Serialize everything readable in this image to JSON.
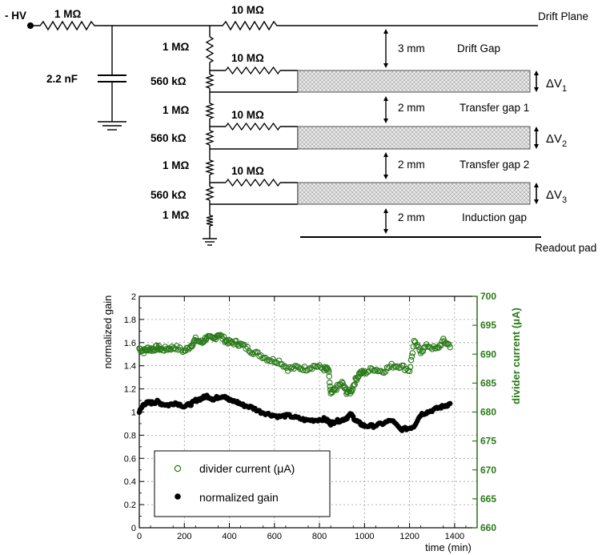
{
  "circuit": {
    "hv": "- HV",
    "r_input": "1 MΩ",
    "cap": "2.2 nF",
    "r_drift": "10 MΩ",
    "drift_plane": "Drift Plane",
    "readout_pad": "Readout pad",
    "chain": [
      "1 MΩ",
      "560 kΩ",
      "1 MΩ",
      "560 kΩ",
      "1 MΩ",
      "560 kΩ",
      "1 MΩ"
    ],
    "gem_resistors": [
      "10 MΩ",
      "10 MΩ",
      "10 MΩ"
    ],
    "dv_main": "ΔV",
    "dv_subs": [
      "1",
      "2",
      "3"
    ],
    "gaps": [
      {
        "distance": "3 mm",
        "name": "Drift Gap"
      },
      {
        "distance": "2 mm",
        "name": "Transfer gap 1"
      },
      {
        "distance": "2 mm",
        "name": "Transfer gap 2"
      },
      {
        "distance": "2 mm",
        "name": "Induction gap"
      }
    ]
  },
  "chart_data": {
    "type": "scatter",
    "title": "",
    "xlabel": "time (min)",
    "ylabel_left": "normalized gain",
    "ylabel_right": "divider current (μA)",
    "xlim": [
      0,
      1500
    ],
    "ylim_left": [
      0,
      2
    ],
    "ylim_right": [
      660,
      700
    ],
    "x_ticks": [
      "0",
      "200",
      "400",
      "600",
      "800",
      "1000",
      "1200",
      "1400"
    ],
    "y_ticks_left": [
      "0",
      "0.2",
      "0.4",
      "0.6",
      "0.8",
      "1",
      "1.2",
      "1.4",
      "1.6",
      "1.8",
      "2"
    ],
    "y_ticks_right": [
      "660",
      "665",
      "670",
      "675",
      "680",
      "685",
      "690",
      "695",
      "700"
    ],
    "grid": true,
    "legend_position": "bottom-left",
    "colors": {
      "current": "#2a7a1a",
      "gain": "#000000"
    },
    "series": [
      {
        "name": "divider current (μA)",
        "axis": "right",
        "marker": "open-circle",
        "x": [
          0,
          20,
          40,
          60,
          80,
          100,
          130,
          160,
          200,
          230,
          250,
          280,
          300,
          330,
          350,
          380,
          400,
          430,
          460,
          500,
          540,
          580,
          620,
          660,
          700,
          740,
          780,
          820,
          840,
          850,
          870,
          900,
          920,
          940,
          960,
          980,
          1000,
          1040,
          1080,
          1120,
          1160,
          1200,
          1220,
          1250,
          1280,
          1320,
          1350,
          1380
        ],
        "y": [
          691,
          690.5,
          691,
          690.8,
          691.2,
          690.8,
          691,
          691.2,
          690.5,
          691.5,
          692.5,
          692,
          693,
          692.5,
          693.5,
          692.5,
          692,
          692,
          691.5,
          690.5,
          689.8,
          689,
          688.8,
          687.5,
          687.7,
          687.5,
          688,
          687.5,
          687.3,
          683,
          684,
          685,
          683.5,
          683.5,
          685.5,
          686.8,
          686.8,
          687.5,
          687,
          688,
          688,
          687.2,
          692,
          690.5,
          691.5,
          690.8,
          692.3,
          691.5
        ]
      },
      {
        "name": "normalized gain",
        "axis": "left",
        "marker": "filled-circle",
        "x": [
          0,
          20,
          40,
          60,
          80,
          100,
          130,
          160,
          200,
          230,
          250,
          280,
          300,
          330,
          350,
          380,
          400,
          430,
          460,
          500,
          540,
          580,
          620,
          660,
          700,
          740,
          780,
          820,
          840,
          850,
          870,
          900,
          920,
          940,
          960,
          980,
          1000,
          1040,
          1080,
          1120,
          1160,
          1200,
          1220,
          1250,
          1280,
          1320,
          1350,
          1380
        ],
        "y": [
          1.0,
          1.07,
          1.08,
          1.08,
          1.09,
          1.07,
          1.06,
          1.08,
          1.05,
          1.07,
          1.1,
          1.12,
          1.14,
          1.11,
          1.13,
          1.14,
          1.1,
          1.09,
          1.06,
          1.04,
          1.0,
          0.98,
          0.96,
          0.97,
          0.95,
          0.93,
          0.93,
          0.94,
          0.92,
          0.9,
          0.92,
          0.93,
          0.95,
          0.98,
          0.93,
          0.9,
          0.88,
          0.88,
          0.9,
          0.93,
          0.85,
          0.86,
          0.88,
          0.98,
          1.0,
          1.03,
          1.05,
          1.07
        ]
      }
    ]
  },
  "legend": {
    "current_label": "divider current (μA)",
    "gain_label": "normalized gain"
  }
}
